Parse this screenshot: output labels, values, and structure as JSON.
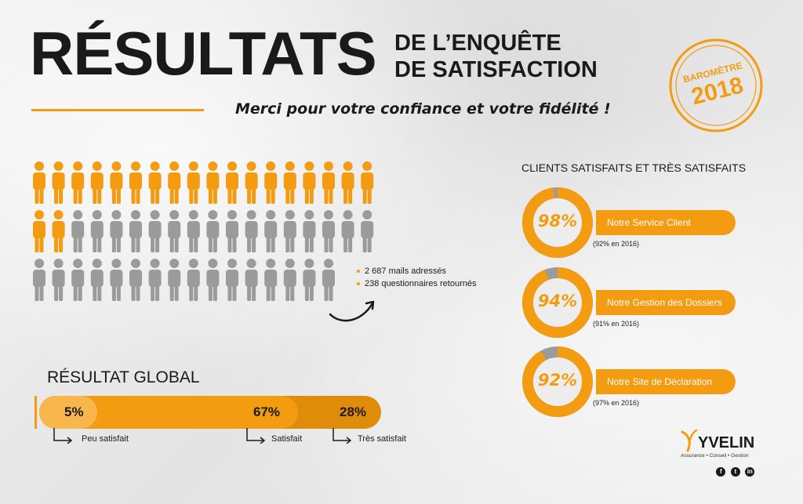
{
  "header": {
    "title_main": "RÉSULTATS",
    "title_line1": "DE L’ENQUÊTE",
    "title_line2": "DE SATISFACTION",
    "tagline": "Merci pour votre confiance et votre fidélité !"
  },
  "stamp": {
    "label": "BAROMÈTRE",
    "year": "2018"
  },
  "people_grid": {
    "total_icons": 54,
    "highlighted_icons": 20,
    "colors": {
      "highlight": "#f39c12",
      "base": "#9b9b9b"
    }
  },
  "survey": {
    "mails": "2 687 mails adressés",
    "returns": "238 questionnaires retournés"
  },
  "satisfaction": {
    "title": "CLIENTS SATISFAITS ET TRÈS SATISFAITS",
    "items": [
      {
        "pct_label": "98%",
        "value": 98,
        "label": "Notre Service Client",
        "previous": "(92% en 2016)"
      },
      {
        "pct_label": "94%",
        "value": 94,
        "label": "Notre Gestion des Dossiers",
        "previous": "(91% en 2016)"
      },
      {
        "pct_label": "92%",
        "value": 92,
        "label": "Notre Site de Déclaration",
        "previous": "(97% en 2016)"
      }
    ]
  },
  "global": {
    "title": "RÉSULTAT GLOBAL",
    "segments": [
      {
        "pct_label": "5%",
        "value": 5,
        "note": "Peu satisfait"
      },
      {
        "pct_label": "67%",
        "value": 67,
        "note": "Satisfait"
      },
      {
        "pct_label": "28%",
        "value": 28,
        "note": "Très satisfait"
      }
    ]
  },
  "brand": {
    "name": "YVELIN",
    "subtitle": "Assurance • Conseil • Gestion",
    "social": [
      {
        "icon": "facebook-icon",
        "glyph": "f"
      },
      {
        "icon": "twitter-icon",
        "glyph": "t"
      },
      {
        "icon": "linkedin-icon",
        "glyph": "in"
      }
    ]
  },
  "colors": {
    "accent": "#f39c12",
    "accent_dark": "#e08c0b",
    "accent_light": "#f8b64c",
    "gray": "#9b9b9b",
    "text": "#1a1a1a"
  }
}
